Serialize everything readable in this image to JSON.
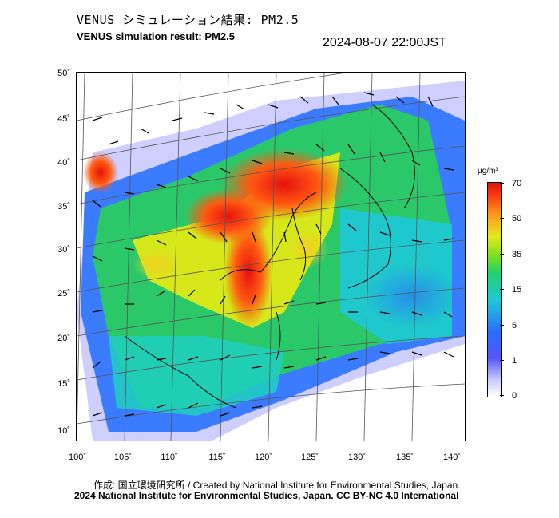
{
  "header": {
    "title_ja": "VENUS シミュレーション結果: PM2.5",
    "title_en": "VENUS simulation result: PM2.5",
    "timestamp": "2024-08-07 22:00JST"
  },
  "map": {
    "lat_ticks": [
      "50˚",
      "45˚",
      "40˚",
      "35˚",
      "30˚",
      "25˚",
      "20˚",
      "15˚",
      "10˚"
    ],
    "lon_ticks": [
      "100˚",
      "105˚",
      "110˚",
      "115˚",
      "120˚",
      "125˚",
      "130˚",
      "135˚",
      "140˚"
    ]
  },
  "colorbar": {
    "unit": "μg/m³",
    "labels": [
      "70",
      "50",
      "35",
      "15",
      "5",
      "1",
      "0"
    ]
  },
  "footer": {
    "credit_line1": "作成: 国立環境研究所 / Created by National Institute for Environmental Studies, Japan.",
    "credit_line2": "2024 National Institute for Environmental Studies, Japan. CC BY-NC 4.0 International"
  },
  "colors": {
    "high": "#e01010",
    "mid": "#1fd36a",
    "low": "#2a6bff",
    "background": "#c9c9ff"
  }
}
